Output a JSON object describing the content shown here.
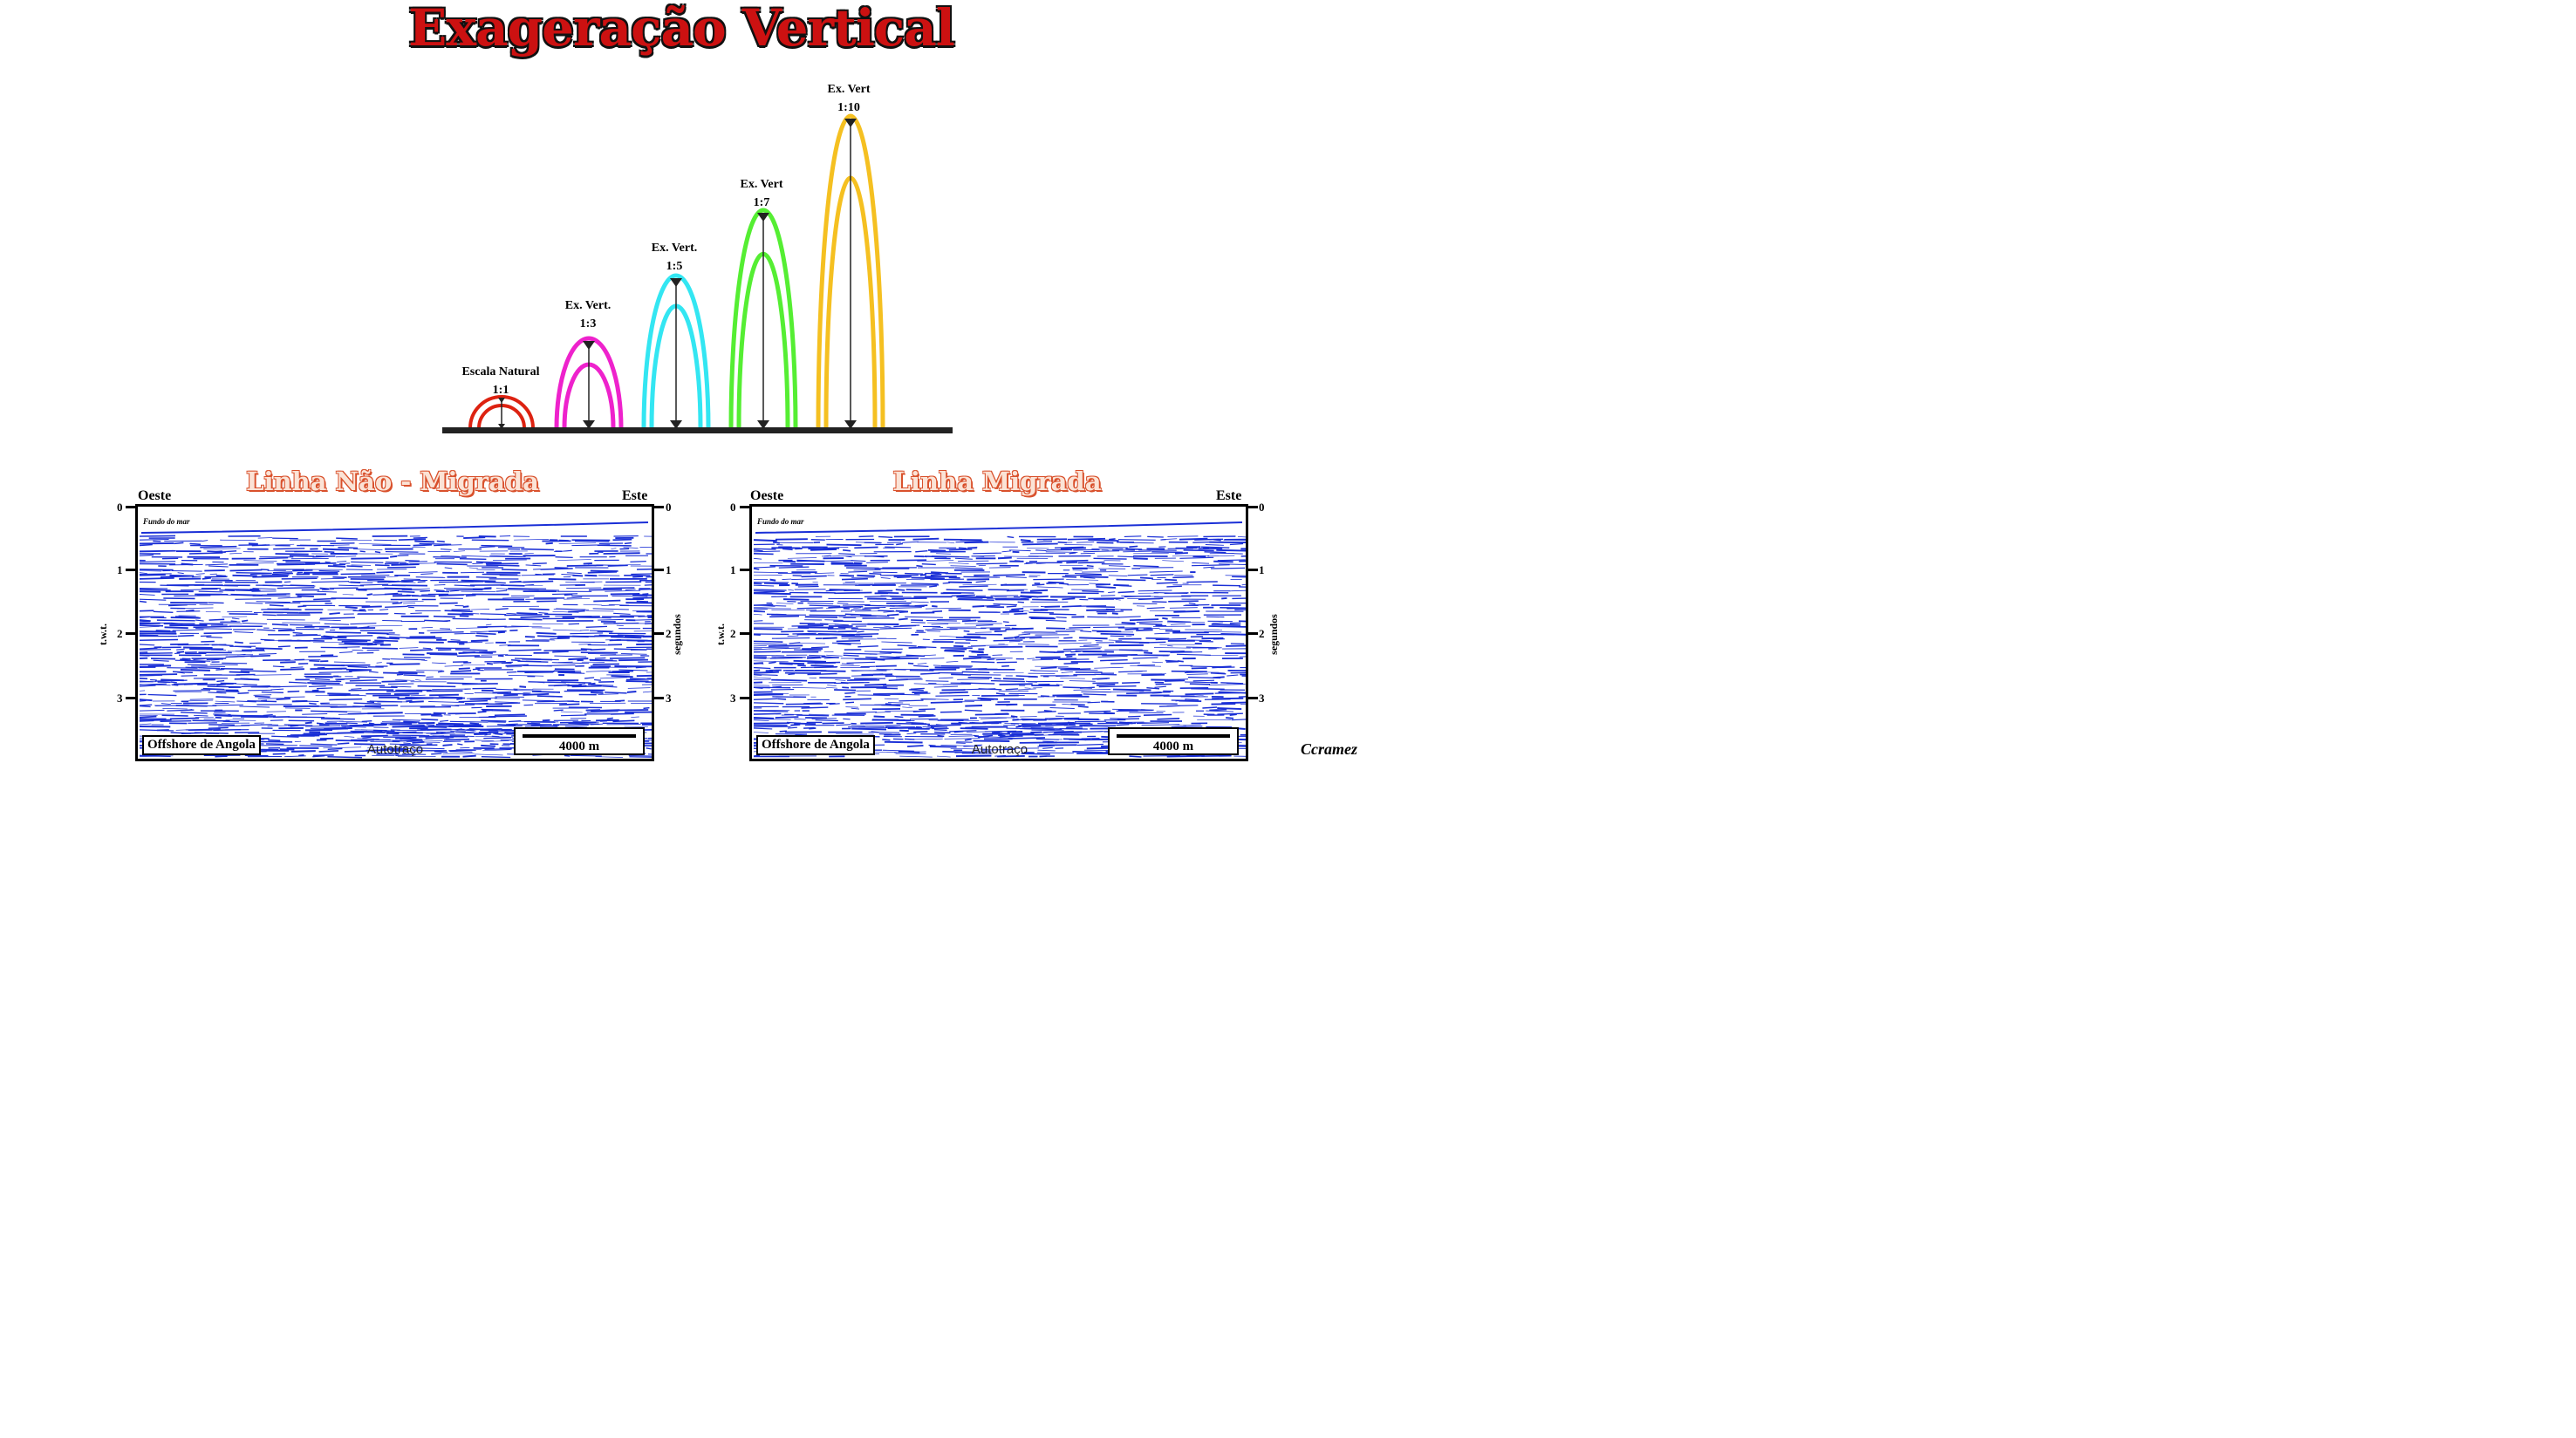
{
  "title": "Exageração Vertical",
  "arches": [
    {
      "line1": "Escala Natural",
      "line2": "1:1",
      "ratio": 1,
      "color": "#dd2211"
    },
    {
      "line1": "Ex. Vert.",
      "line2": "1:3",
      "ratio": 3,
      "color": "#ee22cc"
    },
    {
      "line1": "Ex. Vert.",
      "line2": "1:5",
      "ratio": 5,
      "color": "#33e6f2"
    },
    {
      "line1": "Ex. Vert",
      "line2": "1:7",
      "ratio": 7,
      "color": "#55ee33"
    },
    {
      "line1": "Ex. Vert",
      "line2": "1:10",
      "ratio": 10,
      "color": "#f5c021"
    }
  ],
  "panels": {
    "left": {
      "title": "Linha Não - Migrada",
      "west": "Oeste",
      "east": "Este",
      "left_axis_label": "t.w.t.",
      "right_axis_label": "segundos",
      "ticks": [
        "0",
        "1",
        "2",
        "3"
      ],
      "seafloor": "Fundo do mar",
      "location": "Offshore de Angola",
      "scale": "4000 m",
      "autotrace": "Autotraço"
    },
    "right": {
      "title": "Linha Migrada",
      "west": "Oeste",
      "east": "Este",
      "left_axis_label": "t.w.t.",
      "right_axis_label": "segundos",
      "ticks": [
        "0",
        "1",
        "2",
        "3"
      ],
      "seafloor": "Fundo do mar",
      "location": "Offshore de Angola",
      "scale": "4000 m",
      "autotrace": "Autotraço"
    }
  },
  "credit": "Ccramez",
  "colors": {
    "seismic": "#1a2fd6",
    "title": "#cc1111",
    "panel_title": "#d9512c"
  }
}
